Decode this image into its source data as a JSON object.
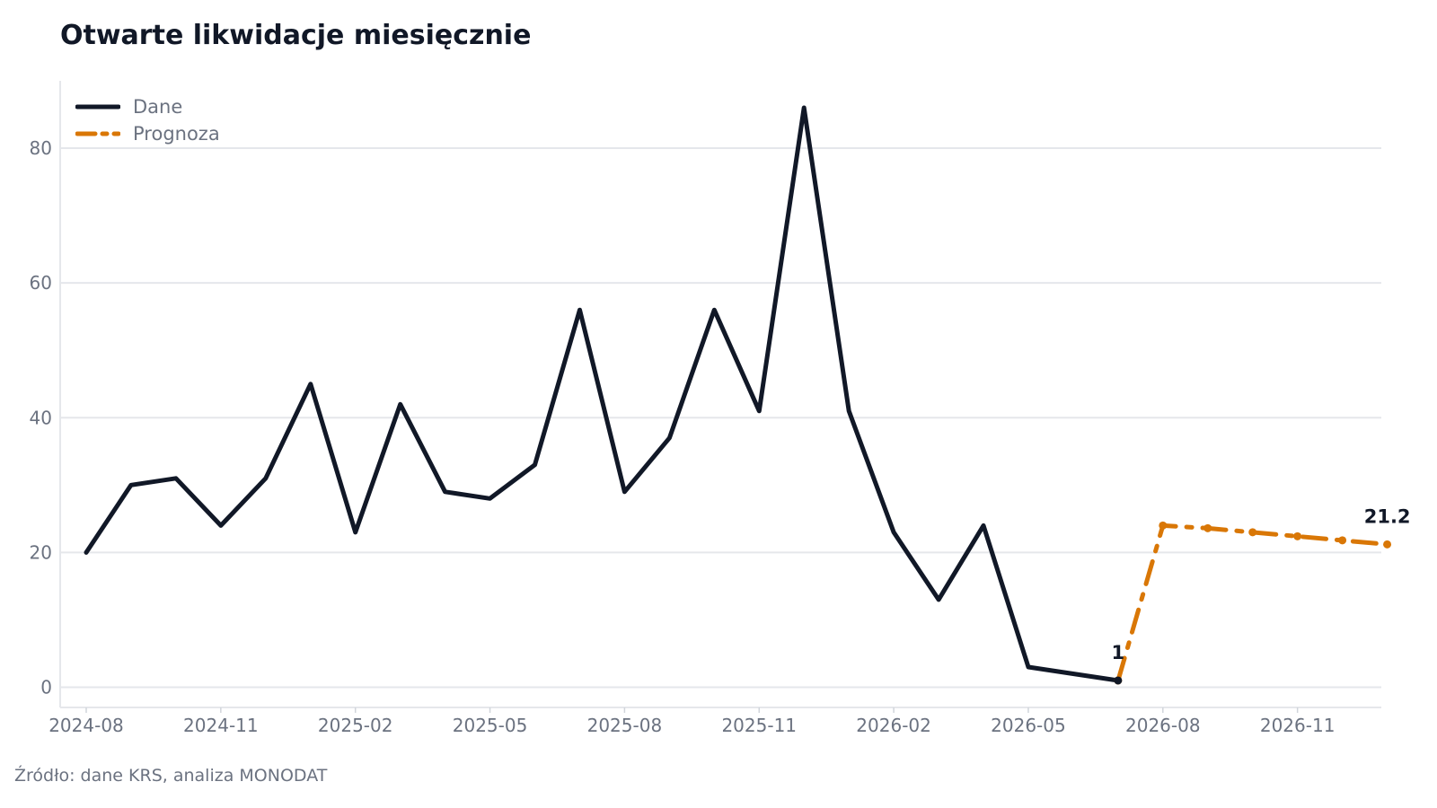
{
  "chart_data": {
    "type": "line",
    "title": "Otwarte likwidacje miesięcznie",
    "xlabel": "",
    "ylabel": "",
    "ylim": [
      -3,
      90
    ],
    "yticks": [
      0,
      20,
      40,
      60,
      80
    ],
    "x_tick_labels": [
      "2024-08",
      "2024-11",
      "2025-02",
      "2025-05",
      "2025-08",
      "2025-11",
      "2026-02",
      "2026-05",
      "2026-08",
      "2026-11"
    ],
    "grid": "horizontal",
    "legend_position": "top-left",
    "series": [
      {
        "name": "Dane",
        "color": "#111827",
        "style": "solid",
        "x": [
          "2024-08",
          "2024-09",
          "2024-10",
          "2024-11",
          "2024-12",
          "2025-01",
          "2025-02",
          "2025-03",
          "2025-04",
          "2025-05",
          "2025-06",
          "2025-07",
          "2025-08",
          "2025-09",
          "2025-10",
          "2025-11",
          "2025-12",
          "2026-01",
          "2026-02",
          "2026-03",
          "2026-04",
          "2026-05",
          "2026-06",
          "2026-07"
        ],
        "values": [
          20,
          30,
          31,
          24,
          31,
          45,
          23,
          42,
          29,
          28,
          33,
          56,
          29,
          37,
          56,
          41,
          86,
          41,
          23,
          13,
          24,
          3,
          2,
          1
        ]
      },
      {
        "name": "Prognoza",
        "color": "#d97706",
        "style": "dashed",
        "x": [
          "2026-07",
          "2026-08",
          "2026-09",
          "2026-10",
          "2026-11",
          "2026-12",
          "2027-01"
        ],
        "values": [
          1,
          24,
          23.6,
          23,
          22.4,
          21.8,
          21.2
        ]
      }
    ],
    "annotations": [
      {
        "x": "2026-07",
        "y": 1,
        "text": "1"
      },
      {
        "x": "2027-01",
        "y": 21.2,
        "text": "21.2"
      }
    ]
  },
  "source": "Źródło: dane KRS, analiza MONODAT"
}
